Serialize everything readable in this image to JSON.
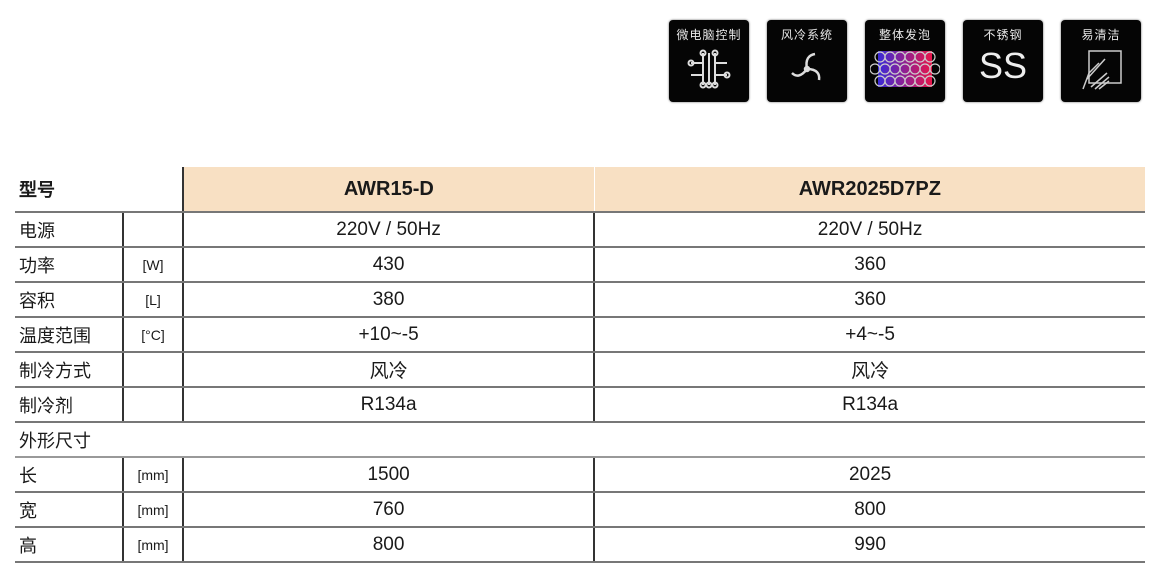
{
  "icons": [
    {
      "label": "微电脑控制",
      "icon": "circuit-icon"
    },
    {
      "label": "风冷系统",
      "icon": "fan-icon"
    },
    {
      "label": "整体发泡",
      "icon": "foam-icon"
    },
    {
      "label": "不锈钢",
      "icon": "ss-icon",
      "glyph": "SS"
    },
    {
      "label": "易清洁",
      "icon": "hand-wipe-icon"
    }
  ],
  "table": {
    "header": {
      "label": "型号",
      "models": [
        "AWR15-D",
        "AWR2025D7PZ"
      ]
    },
    "rows": [
      {
        "label": "电源",
        "unit": "",
        "values": [
          "220V / 50Hz",
          "220V / 50Hz"
        ]
      },
      {
        "label": "功率",
        "unit": "[W]",
        "values": [
          "430",
          "360"
        ]
      },
      {
        "label": "容积",
        "unit": "[L]",
        "values": [
          "380",
          "360"
        ]
      },
      {
        "label": "温度范围",
        "unit": "[°C]",
        "values": [
          "+10~-5",
          "+4~-5"
        ]
      },
      {
        "label": "制冷方式",
        "unit": "",
        "values": [
          "风冷",
          "风冷"
        ]
      },
      {
        "label": "制冷剂",
        "unit": "",
        "values": [
          "R134a",
          "R134a"
        ]
      }
    ],
    "group": "外形尺寸",
    "dims": [
      {
        "label": "长",
        "unit": "[mm]",
        "values": [
          "1500",
          "2025"
        ]
      },
      {
        "label": "宽",
        "unit": "[mm]",
        "values": [
          "760",
          "800"
        ]
      },
      {
        "label": "高",
        "unit": "[mm]",
        "values": [
          "800",
          "990"
        ]
      }
    ]
  }
}
